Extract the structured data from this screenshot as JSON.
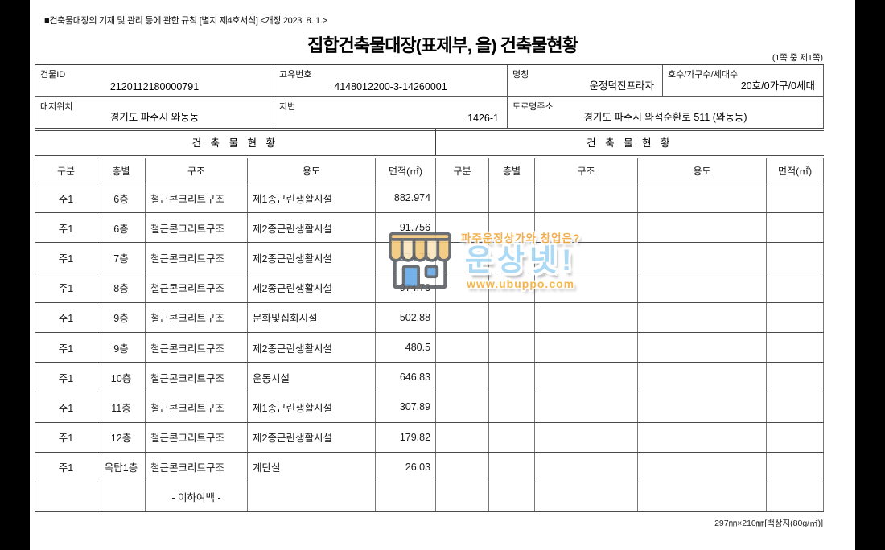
{
  "notice": "■건축물대장의 기재 및 관리 등에 관한 규칙 [별지 제4호서식] <개정 2023. 8. 1.>",
  "title": "집합건축물대장(표제부, 을) 건축물현황",
  "page_indicator": "(1쪽 중 제1쪽)",
  "info": {
    "building_id_label": "건물ID",
    "building_id": "2120112180000791",
    "unique_no_label": "고유번호",
    "unique_no": "4148012200-3-14260001",
    "name_label": "명칭",
    "name": "운정덕진프라자",
    "units_label": "호수/가구수/세대수",
    "units": "20호/0가구/0세대",
    "site_location_label": "대지위치",
    "site_location": "경기도 파주시 와동동",
    "lot_no_label": "지번",
    "lot_no": "1426-1",
    "road_address_label": "도로명주소",
    "road_address": "경기도 파주시 와석순환로 511 (와동동)"
  },
  "status_table": {
    "left_section_title": "건 축 물 현 황",
    "right_section_title": "건 축 물 현 황",
    "columns": [
      "구분",
      "층별",
      "구조",
      "용도",
      "면적(㎡)"
    ],
    "rows": [
      {
        "gubun": "주1",
        "floor": "6층",
        "structure": "철근콘크리트구조",
        "use": "제1종근린생활시설",
        "area": "882.974"
      },
      {
        "gubun": "주1",
        "floor": "6층",
        "structure": "철근콘크리트구조",
        "use": "제2종근린생활시설",
        "area": "91.756"
      },
      {
        "gubun": "주1",
        "floor": "7층",
        "structure": "철근콘크리트구조",
        "use": "제2종근린생활시설",
        "area": "974.73"
      },
      {
        "gubun": "주1",
        "floor": "8층",
        "structure": "철근콘크리트구조",
        "use": "제2종근린생활시설",
        "area": "974.73"
      },
      {
        "gubun": "주1",
        "floor": "9층",
        "structure": "철근콘크리트구조",
        "use": "문화및집회시설",
        "area": "502.88"
      },
      {
        "gubun": "주1",
        "floor": "9층",
        "structure": "철근콘크리트구조",
        "use": "제2종근린생활시설",
        "area": "480.5"
      },
      {
        "gubun": "주1",
        "floor": "10층",
        "structure": "철근콘크리트구조",
        "use": "운동시설",
        "area": "646.83"
      },
      {
        "gubun": "주1",
        "floor": "11층",
        "structure": "철근콘크리트구조",
        "use": "제1종근린생활시설",
        "area": "307.89"
      },
      {
        "gubun": "주1",
        "floor": "12층",
        "structure": "철근콘크리트구조",
        "use": "제2종근린생활시설",
        "area": "179.82"
      },
      {
        "gubun": "주1",
        "floor": "옥탑1층",
        "structure": "철근콘크리트구조",
        "use": "계단실",
        "area": "26.03"
      },
      {
        "gubun": "",
        "floor": "",
        "structure": "- 이하여백 -",
        "use": "",
        "area": ""
      }
    ]
  },
  "watermark": {
    "tagline": "파주운정상가와 창업은?",
    "brand": "운상넷!",
    "url": "www.ubuppo.com",
    "colors": {
      "orange": "#f2a93e",
      "blue": "#a5d6f2",
      "awning_gold": "#f3c97c",
      "awning_cream": "#fbe7bd",
      "door_blue": "#6aabe8",
      "outline_gray": "#5f6368"
    }
  },
  "footer": "297㎜×210㎜[백상지(80g/㎡)]"
}
